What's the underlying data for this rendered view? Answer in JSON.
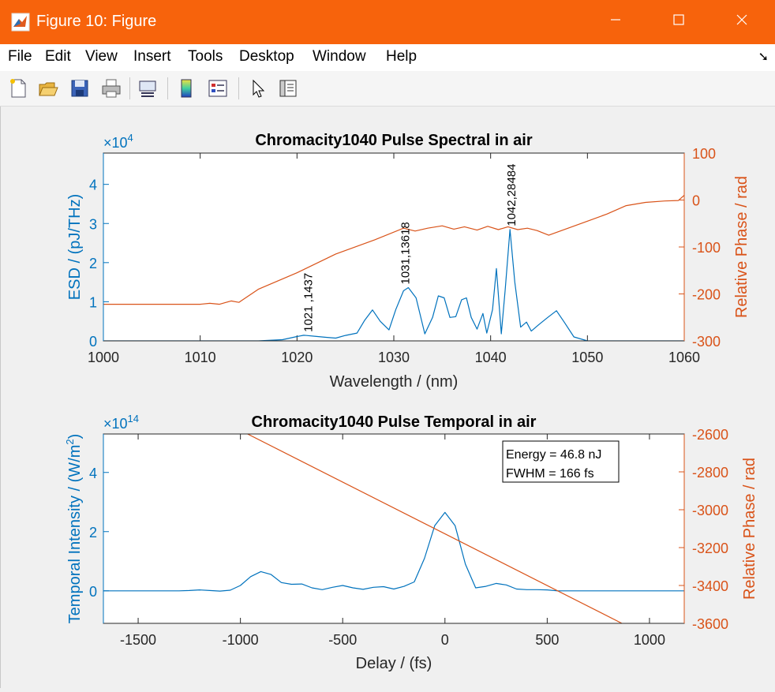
{
  "window": {
    "title": "Figure 10: Figure"
  },
  "menu": [
    "File",
    "Edit",
    "View",
    "Insert",
    "Tools",
    "Desktop",
    "Window",
    "Help"
  ],
  "toolbar": [
    "new-figure",
    "open-file",
    "save",
    "print",
    "link-plot",
    "insert-colorbar",
    "insert-legend",
    "edit-plot",
    "property-inspector"
  ],
  "colors": {
    "left_axis": "#0072bd",
    "right_axis": "#d95319",
    "title_bar": "#f7630c"
  },
  "chart_data": [
    {
      "type": "line",
      "title": "Chromacity1040 Pulse Spectral in air",
      "xlabel": "Wavelength / (nm)",
      "ylabel": "ESD / (pJ/THz)",
      "ylabel_right": "Relative Phase / rad",
      "y_exponent": "×10^4",
      "xlim": [
        1000,
        1060
      ],
      "ylim": [
        0,
        48000
      ],
      "ylim_right": [
        -300,
        100
      ],
      "xticks": [
        1000,
        1010,
        1020,
        1030,
        1040,
        1050,
        1060
      ],
      "yticks": [
        0,
        1,
        2,
        3,
        4
      ],
      "yticks_right": [
        100,
        0,
        -100,
        -200,
        -300
      ],
      "series": [
        {
          "axis": "left",
          "x": [
            1000,
            1016,
            1018.5,
            1020,
            1020.7,
            1021,
            1021.8,
            1023,
            1024,
            1025,
            1026.2,
            1027,
            1027.8,
            1028.6,
            1029.5,
            1030.2,
            1031,
            1031.5,
            1032.3,
            1033.2,
            1034,
            1034.6,
            1035.2,
            1035.8,
            1036.4,
            1037,
            1037.5,
            1038,
            1038.6,
            1039.2,
            1039.6,
            1040.2,
            1040.6,
            1041.1,
            1041.5,
            1042,
            1042.5,
            1043.1,
            1043.7,
            1044.2,
            1045,
            1045.9,
            1046.8,
            1047.6,
            1048.6,
            1050,
            1060
          ],
          "y": [
            0,
            0,
            300,
            1100,
            1437,
            1380,
            1200,
            900,
            700,
            1400,
            2000,
            5300,
            7900,
            5000,
            2800,
            8000,
            12800,
            13618,
            11000,
            1800,
            6000,
            11500,
            11000,
            6000,
            6200,
            10500,
            11000,
            6000,
            3000,
            7000,
            2000,
            8000,
            18500,
            1800,
            13000,
            28484,
            15000,
            3500,
            4800,
            2500,
            4200,
            6000,
            7700,
            4800,
            1000,
            0,
            0
          ]
        },
        {
          "axis": "right",
          "x": [
            1000,
            1010,
            1011,
            1012,
            1012.5,
            1013.2,
            1014,
            1016,
            1020,
            1024,
            1028,
            1031,
            1032.2,
            1033.5,
            1035,
            1036.2,
            1037.3,
            1038.6,
            1039.7,
            1040.8,
            1041.8,
            1042.8,
            1043.8,
            1044.8,
            1046,
            1048,
            1050,
            1052,
            1054,
            1056,
            1058,
            1059.4,
            1060
          ],
          "y": [
            -222,
            -222,
            -220,
            -222,
            -219,
            -215,
            -218,
            -190,
            -155,
            -115,
            -85,
            -60,
            -66,
            -60,
            -55,
            -62,
            -57,
            -64,
            -56,
            -63,
            -57,
            -63,
            -60,
            -65,
            -75,
            -60,
            -45,
            -30,
            -12,
            -5,
            -2,
            -1,
            10
          ]
        }
      ],
      "annotations": [
        {
          "x": 1021,
          "y": 1437,
          "text": "1021 ,1437"
        },
        {
          "x": 1031,
          "y": 13618,
          "text": "1031,13618"
        },
        {
          "x": 1042,
          "y": 28484,
          "text": "1042,28484"
        }
      ]
    },
    {
      "type": "line",
      "title": "Chromacity1040 Pulse Temporal in air",
      "xlabel": "Delay / (fs)",
      "ylabel": "Temporal Intensity / (W/m²)",
      "ylabel_right": "Relative Phase / rad",
      "y_exponent": "×10^14",
      "xlim": [
        -1670,
        1170
      ],
      "ylim": [
        -110000000000000.0,
        530000000000000.0
      ],
      "ylim_right": [
        -3600,
        -2600
      ],
      "xticks": [
        -1500,
        -1000,
        -500,
        0,
        500,
        1000
      ],
      "yticks": [
        0,
        2,
        4
      ],
      "yticks_right": [
        -2600,
        -2800,
        -3000,
        -3200,
        -3400,
        -3600
      ],
      "series": [
        {
          "axis": "left",
          "x": [
            -1670,
            -1300,
            -1250,
            -1200,
            -1150,
            -1100,
            -1050,
            -1000,
            -950,
            -900,
            -850,
            -800,
            -750,
            -700,
            -650,
            -600,
            -550,
            -500,
            -450,
            -400,
            -350,
            -300,
            -250,
            -200,
            -150,
            -100,
            -50,
            0,
            50,
            100,
            150,
            200,
            250,
            300,
            350,
            400,
            450,
            500,
            550,
            1170
          ],
          "y": [
            0,
            0,
            1000000000000.0,
            3000000000000.0,
            1000000000000.0,
            -1000000000000.0,
            2000000000000.0,
            18000000000000.0,
            48000000000000.0,
            65000000000000.0,
            55000000000000.0,
            28000000000000.0,
            22000000000000.0,
            23000000000000.0,
            10000000000000.0,
            4000000000000.0,
            12000000000000.0,
            18000000000000.0,
            10000000000000.0,
            5000000000000.0,
            12000000000000.0,
            14000000000000.0,
            6000000000000.0,
            15000000000000.0,
            30000000000000.0,
            110000000000000.0,
            220000000000000.0,
            265000000000000.0,
            220000000000000.0,
            90000000000000.0,
            10000000000000.0,
            15000000000000.0,
            25000000000000.0,
            20000000000000.0,
            6000000000000.0,
            4000000000000.0,
            4000000000000.0,
            3000000000000.0,
            0,
            0
          ]
        },
        {
          "axis": "right",
          "x": [
            -965,
            865
          ],
          "y": [
            -2600,
            -3600
          ]
        }
      ],
      "textbox": [
        "Energy = 46.8 nJ",
        "FWHM = 166 fs"
      ]
    }
  ]
}
